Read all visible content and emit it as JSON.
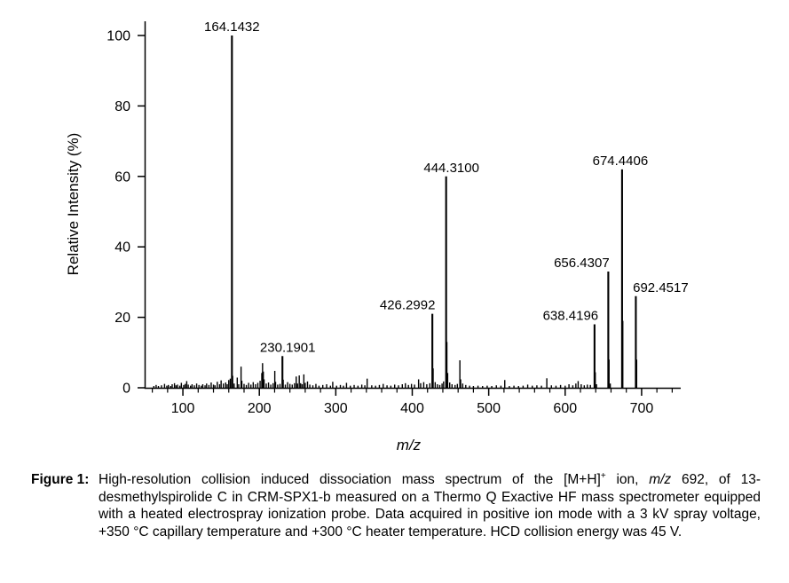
{
  "figure": {
    "caption_label": "Figure 1:",
    "caption_segments": [
      {
        "t": "High-resolution collision induced dissociation mass spectrum of the [M+H]"
      },
      {
        "t": "+",
        "sup": true
      },
      {
        "t": " ion, "
      },
      {
        "t": "m/z",
        "i": true
      },
      {
        "t": " 692, of 13-desmethylspirolide C in CRM-SPX1-b measured on a Thermo Q Exactive HF mass spectrometer equipped with a heated electrospray ionization probe. Data acquired in positive ion mode with a 3 kV spray voltage, +350 °C capillary temperature and +300 °C heater temperature. HCD collision energy was 45 V."
      }
    ]
  },
  "chart_data": {
    "type": "bar",
    "subtype": "mass-spectrum-stick-plot",
    "title": "",
    "xlabel": "m/z",
    "ylabel": "Relative Intensity (%)",
    "xlim": [
      50,
      750
    ],
    "ylim": [
      0,
      100
    ],
    "x_major_ticks": [
      100,
      200,
      300,
      400,
      500,
      600,
      700
    ],
    "x_minor_tick_step": 20,
    "y_major_ticks": [
      0,
      20,
      40,
      60,
      80,
      100
    ],
    "grid": false,
    "line_color": "#000000",
    "labeled_peaks": [
      {
        "mz": 164.1432,
        "intensity": 100,
        "label": "164.1432",
        "label_dx": 0
      },
      {
        "mz": 230.1901,
        "intensity": 9,
        "label": "230.1901",
        "label_dx": 6
      },
      {
        "mz": 426.2992,
        "intensity": 21,
        "label": "426.2992",
        "label_dx": -28
      },
      {
        "mz": 444.31,
        "intensity": 60,
        "label": "444.3100",
        "label_dx": 6
      },
      {
        "mz": 638.4196,
        "intensity": 18,
        "label": "638.4196",
        "label_dx": -27
      },
      {
        "mz": 656.4307,
        "intensity": 33,
        "label": "656.4307",
        "label_dx": -30
      },
      {
        "mz": 674.4406,
        "intensity": 62,
        "label": "674.4406",
        "label_dx": -2
      },
      {
        "mz": 692.4517,
        "intensity": 26,
        "label": "692.4517",
        "label_dx": 28
      }
    ],
    "minor_peaks": [
      [
        62,
        0.5
      ],
      [
        65,
        0.8
      ],
      [
        68,
        0.5
      ],
      [
        72,
        0.7
      ],
      [
        76,
        1.1
      ],
      [
        79,
        0.6
      ],
      [
        81,
        0.8
      ],
      [
        84,
        0.5
      ],
      [
        86,
        1.0
      ],
      [
        89,
        1.3
      ],
      [
        91,
        0.7
      ],
      [
        93,
        0.9
      ],
      [
        96,
        0.6
      ],
      [
        98,
        1.4
      ],
      [
        101,
        0.8
      ],
      [
        103,
        1.1
      ],
      [
        105,
        1.9
      ],
      [
        107,
        0.9
      ],
      [
        110,
        0.6
      ],
      [
        112,
        1.0
      ],
      [
        115,
        0.7
      ],
      [
        118,
        1.2
      ],
      [
        121,
        0.8
      ],
      [
        124,
        0.6
      ],
      [
        126,
        1.0
      ],
      [
        129,
        0.7
      ],
      [
        131,
        1.2
      ],
      [
        134,
        0.8
      ],
      [
        137,
        1.5
      ],
      [
        140,
        0.9
      ],
      [
        142,
        0.7
      ],
      [
        145,
        1.7
      ],
      [
        148,
        1.0
      ],
      [
        150,
        2.1
      ],
      [
        153,
        1.2
      ],
      [
        156,
        1.5
      ],
      [
        158,
        1.0
      ],
      [
        160,
        2.2
      ],
      [
        162,
        2.6
      ],
      [
        165.1,
        3.4
      ],
      [
        167,
        1.2
      ],
      [
        171.1,
        2.9
      ],
      [
        173,
        1.0
      ],
      [
        176.1,
        6.0
      ],
      [
        177.1,
        2.0
      ],
      [
        180,
        1.1
      ],
      [
        183,
        0.8
      ],
      [
        186,
        1.4
      ],
      [
        189,
        0.9
      ],
      [
        192,
        1.6
      ],
      [
        195,
        1.0
      ],
      [
        198,
        1.4
      ],
      [
        201,
        2.0
      ],
      [
        203.2,
        4.2
      ],
      [
        204.2,
        7.0
      ],
      [
        205.2,
        4.6
      ],
      [
        206.2,
        2.4
      ],
      [
        209,
        1.2
      ],
      [
        212,
        1.5
      ],
      [
        215,
        0.9
      ],
      [
        218,
        1.3
      ],
      [
        220.2,
        4.8
      ],
      [
        221.2,
        1.7
      ],
      [
        224,
        0.9
      ],
      [
        227,
        1.1
      ],
      [
        231.2,
        2.3
      ],
      [
        234,
        0.9
      ],
      [
        237,
        1.6
      ],
      [
        240,
        1.1
      ],
      [
        243,
        0.9
      ],
      [
        246,
        1.3
      ],
      [
        248.2,
        3.2
      ],
      [
        250,
        1.2
      ],
      [
        252.2,
        3.5
      ],
      [
        254,
        1.3
      ],
      [
        256,
        1.0
      ],
      [
        258.2,
        3.8
      ],
      [
        260,
        1.4
      ],
      [
        263,
        1.8
      ],
      [
        266,
        0.9
      ],
      [
        270,
        0.7
      ],
      [
        274,
        1.1
      ],
      [
        278,
        0.6
      ],
      [
        283,
        0.8
      ],
      [
        288,
        1.0
      ],
      [
        293,
        0.6
      ],
      [
        296,
        1.7
      ],
      [
        301,
        0.6
      ],
      [
        306,
        0.8
      ],
      [
        310,
        0.6
      ],
      [
        314,
        1.4
      ],
      [
        319,
        0.6
      ],
      [
        324,
        0.8
      ],
      [
        329,
        0.6
      ],
      [
        334,
        0.9
      ],
      [
        338,
        0.7
      ],
      [
        341,
        2.6
      ],
      [
        347,
        0.7
      ],
      [
        352,
        0.6
      ],
      [
        357,
        0.8
      ],
      [
        362,
        1.1
      ],
      [
        367,
        0.7
      ],
      [
        372,
        0.6
      ],
      [
        377,
        0.9
      ],
      [
        382,
        0.7
      ],
      [
        387,
        1.0
      ],
      [
        391,
        1.3
      ],
      [
        395,
        0.8
      ],
      [
        399,
        1.1
      ],
      [
        403,
        0.9
      ],
      [
        408.3,
        2.4
      ],
      [
        411,
        1.3
      ],
      [
        415,
        1.6
      ],
      [
        419,
        1.0
      ],
      [
        423,
        1.3
      ],
      [
        427.3,
        5.5
      ],
      [
        430,
        1.6
      ],
      [
        433,
        1.0
      ],
      [
        436,
        0.8
      ],
      [
        439,
        1.2
      ],
      [
        441,
        1.8
      ],
      [
        445.3,
        13
      ],
      [
        446.3,
        4.2
      ],
      [
        449,
        1.5
      ],
      [
        452,
        1.0
      ],
      [
        456,
        0.8
      ],
      [
        459,
        1.1
      ],
      [
        462.3,
        7.8
      ],
      [
        463.3,
        2.4
      ],
      [
        466,
        1.2
      ],
      [
        470,
        0.8
      ],
      [
        475,
        0.6
      ],
      [
        480,
        0.5
      ],
      [
        486,
        0.6
      ],
      [
        492,
        0.5
      ],
      [
        498,
        0.6
      ],
      [
        504,
        0.5
      ],
      [
        510,
        0.7
      ],
      [
        516,
        0.6
      ],
      [
        521,
        2.2
      ],
      [
        527,
        0.5
      ],
      [
        533,
        0.6
      ],
      [
        539,
        0.5
      ],
      [
        545,
        0.6
      ],
      [
        551,
        0.9
      ],
      [
        557,
        0.6
      ],
      [
        563,
        0.7
      ],
      [
        569,
        0.6
      ],
      [
        576,
        2.7
      ],
      [
        582,
        0.7
      ],
      [
        588,
        0.6
      ],
      [
        594,
        0.8
      ],
      [
        600,
        0.6
      ],
      [
        605,
        1.0
      ],
      [
        610,
        0.7
      ],
      [
        614,
        1.2
      ],
      [
        617,
        1.9
      ],
      [
        621,
        1.0
      ],
      [
        625,
        0.7
      ],
      [
        629,
        0.9
      ],
      [
        633,
        0.8
      ],
      [
        639.4,
        4.4
      ],
      [
        641,
        1.0
      ],
      [
        657.4,
        8.0
      ],
      [
        659,
        1.2
      ],
      [
        675.4,
        19
      ],
      [
        693.5,
        8.0
      ]
    ]
  }
}
